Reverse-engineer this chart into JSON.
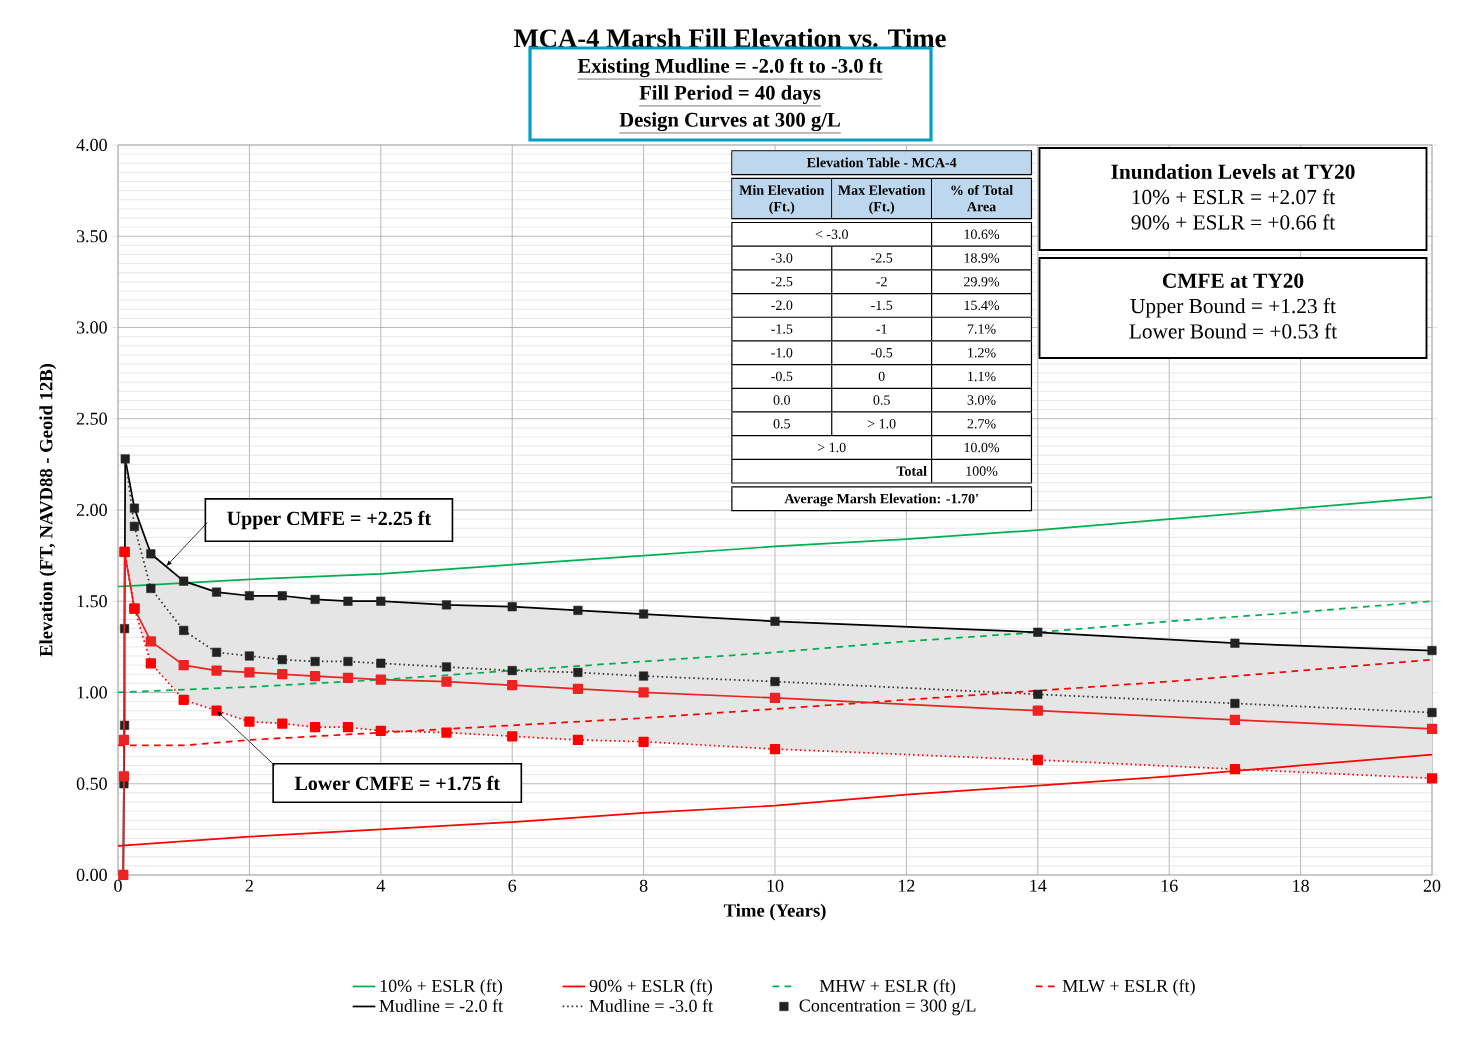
{
  "chart_data": {
    "type": "line",
    "title": "MCA-4 Marsh Fill Elevation vs. Time",
    "xlabel": "Time (Years)",
    "ylabel": "Elevation (FT, NAVD88 - Geoid 12B)",
    "xlim": [
      0,
      20
    ],
    "xticks": [
      0,
      2,
      4,
      6,
      8,
      10,
      12,
      14,
      16,
      18,
      20
    ],
    "ylim": [
      0,
      4
    ],
    "yticks": [
      {
        "value": 0,
        "label": "0.00"
      },
      {
        "value": 0.5,
        "label": "0.50"
      },
      {
        "value": 1,
        "label": "1.00"
      },
      {
        "value": 1.5,
        "label": "1.50"
      },
      {
        "value": 2,
        "label": "2.00"
      },
      {
        "value": 2.5,
        "label": "2.50"
      },
      {
        "value": 3,
        "label": "3.00"
      },
      {
        "value": 3.5,
        "label": "3.50"
      },
      {
        "value": 4,
        "label": "4.00"
      }
    ],
    "grid": true,
    "legend": "bottom",
    "series": [
      {
        "name": "10% + ESLR (ft)",
        "type": "line",
        "color": "#00b050",
        "line_style": "solid",
        "marker": "none",
        "x": [
          0,
          2,
          4,
          6,
          8,
          10,
          12,
          14,
          16,
          18,
          20
        ],
        "values": [
          1.58,
          1.62,
          1.65,
          1.7,
          1.75,
          1.8,
          1.84,
          1.89,
          1.95,
          2.01,
          2.07
        ]
      },
      {
        "name": "90% + ESLR (ft)",
        "type": "line",
        "color": "#ff0000",
        "line_style": "solid",
        "marker": "none",
        "x": [
          0,
          2,
          4,
          6,
          8,
          10,
          12,
          14,
          16,
          18,
          20
        ],
        "values": [
          0.16,
          0.21,
          0.25,
          0.29,
          0.34,
          0.38,
          0.44,
          0.49,
          0.54,
          0.6,
          0.66
        ]
      },
      {
        "name": "MHW + ESLR (ft)",
        "type": "line",
        "color": "#00b050",
        "line_style": "dashed",
        "marker": "none",
        "x": [
          0,
          2,
          4,
          6,
          8,
          10,
          12,
          14,
          16,
          18,
          20
        ],
        "values": [
          1.0,
          1.03,
          1.07,
          1.12,
          1.17,
          1.22,
          1.28,
          1.33,
          1.39,
          1.44,
          1.5
        ]
      },
      {
        "name": "MLW + ESLR (ft)",
        "type": "line",
        "color": "#ff0000",
        "line_style": "dashed",
        "marker": "none",
        "x": [
          0,
          1,
          2,
          4,
          6,
          8,
          10,
          12,
          14,
          16,
          18,
          20
        ],
        "values": [
          0.71,
          0.71,
          0.74,
          0.78,
          0.82,
          0.86,
          0.91,
          0.96,
          1.01,
          1.06,
          1.12,
          1.18
        ]
      },
      {
        "name": "Mudline = -2.0 ft",
        "type": "line",
        "color": "#000000",
        "line_style": "solid",
        "marker": "none",
        "x": [
          0.08,
          0.09,
          0.1,
          0.1,
          0.11,
          0.25,
          0.5,
          1,
          1.5,
          2,
          2.5,
          3,
          3.5,
          4,
          5,
          6,
          7,
          8,
          10,
          14,
          17,
          20
        ],
        "values": [
          0,
          0.5,
          0.82,
          1.35,
          2.28,
          2.01,
          1.76,
          1.61,
          1.55,
          1.53,
          1.53,
          1.51,
          1.5,
          1.5,
          1.48,
          1.47,
          1.45,
          1.43,
          1.39,
          1.33,
          1.27,
          1.23
        ],
        "upper": [
          null,
          null,
          null,
          null,
          2.28,
          2.01,
          1.76,
          1.61,
          1.55,
          1.53,
          1.53,
          1.51,
          1.5,
          1.5,
          1.48,
          1.47,
          1.45,
          1.43,
          1.39,
          1.33,
          1.27,
          1.23
        ],
        "lower": [
          null,
          null,
          null,
          null,
          1.77,
          1.46,
          1.16,
          0.96,
          0.9,
          0.84,
          0.83,
          0.81,
          0.81,
          0.79,
          0.78,
          0.76,
          0.74,
          0.73,
          0.69,
          0.63,
          0.58,
          0.53
        ]
      },
      {
        "name": "Mudline = -3.0 ft",
        "type": "line",
        "color": "#333333",
        "line_style": "dotted",
        "marker": "none",
        "x": [
          0.11,
          0.25,
          0.5,
          1,
          1.5,
          2,
          2.5,
          3,
          3.5,
          4,
          5,
          6,
          7,
          8,
          10,
          14,
          17,
          20
        ],
        "values": [
          2.28,
          1.91,
          1.57,
          1.34,
          1.22,
          1.2,
          1.18,
          1.17,
          1.17,
          1.16,
          1.14,
          1.12,
          1.11,
          1.09,
          1.06,
          0.99,
          0.94,
          0.89
        ]
      },
      {
        "name": "Concentration = 300 g/L",
        "type": "scatter",
        "color": "#222222",
        "marker": "square",
        "x": [
          0.09,
          0.1,
          0.1,
          0.11,
          0.25,
          0.5,
          1,
          1.5,
          2,
          2.5,
          3,
          3.5,
          4,
          5,
          6,
          7,
          8,
          10,
          14,
          17,
          20,
          0.25,
          0.5,
          1,
          1.5,
          2,
          2.5,
          3,
          3.5,
          4,
          5,
          6,
          7,
          8,
          10,
          14,
          17,
          20
        ],
        "values": [
          0.5,
          0.82,
          1.35,
          2.28,
          2.01,
          1.76,
          1.61,
          1.55,
          1.53,
          1.53,
          1.51,
          1.5,
          1.5,
          1.48,
          1.47,
          1.45,
          1.43,
          1.39,
          1.33,
          1.27,
          1.23,
          1.91,
          1.57,
          1.34,
          1.22,
          1.2,
          1.18,
          1.17,
          1.17,
          1.16,
          1.14,
          1.12,
          1.11,
          1.09,
          1.06,
          0.99,
          0.94,
          0.89
        ]
      },
      {
        "type": "line",
        "color": "#ee2222",
        "line_style": "solid",
        "marker": "square",
        "x": [
          0.08,
          0.09,
          0.09,
          0.1,
          0.25,
          0.5,
          1,
          1.5,
          2,
          2.5,
          3,
          3.5,
          4,
          5,
          6,
          7,
          8,
          10,
          14,
          17,
          20
        ],
        "values": [
          0,
          0.54,
          0.74,
          1.77,
          1.46,
          1.28,
          1.15,
          1.12,
          1.11,
          1.1,
          1.09,
          1.08,
          1.07,
          1.06,
          1.04,
          1.02,
          1.0,
          0.97,
          0.9,
          0.85,
          0.8
        ]
      },
      {
        "type": "line",
        "color": "#ff0000",
        "line_style": "dotted",
        "marker": "square",
        "x": [
          0.1,
          0.25,
          0.5,
          1,
          1.5,
          2,
          2.5,
          3,
          3.5,
          4,
          5,
          6,
          7,
          8,
          10,
          14,
          17,
          20
        ],
        "values": [
          1.77,
          1.46,
          1.16,
          0.96,
          0.9,
          0.84,
          0.83,
          0.81,
          0.81,
          0.79,
          0.78,
          0.76,
          0.74,
          0.73,
          0.69,
          0.63,
          0.58,
          0.53
        ]
      }
    ],
    "annotations": [
      "Existing Mudline = -2.0 ft to -3.0 ft",
      "Fill Period = 40 days",
      "Design Curves at 300 g/L",
      "Inundation Levels at TY20",
      "10% + ESLR = +2.07 ft",
      "90% + ESLR = +0.66 ft",
      "CMFE at TY20",
      "Upper Bound = +1.23 ft",
      "Lower Bound = +0.53 ft",
      "Elevation Table - MCA-4",
      "Min Elevation (Ft.)",
      "Max Elevation (Ft.)",
      "% of Total Area",
      "< -3.0",
      "10.6%",
      "-3.0",
      "-2.5",
      "18.9%",
      "-2.5",
      "-2",
      "29.9%",
      "-2.0",
      "-1.5",
      "15.4%",
      "-1.5",
      "-1",
      "7.1%",
      "-1.0",
      "-0.5",
      "1.2%",
      "-0.5",
      "0",
      "1.1%",
      "0.0",
      "0.5",
      "3.0%",
      "0.5",
      "> 1.0",
      "2.7%",
      "> 1.0",
      "10.0%",
      "Total",
      "100%",
      "Average Marsh Elevation: -1.70'",
      {
        "text": "Upper CMFE = +2.25 ft",
        "x": 0.73,
        "y": 1.69
      },
      {
        "text": "Lower CMFE = +1.75 ft",
        "x": 1.5,
        "y": 0.9
      }
    ]
  }
}
